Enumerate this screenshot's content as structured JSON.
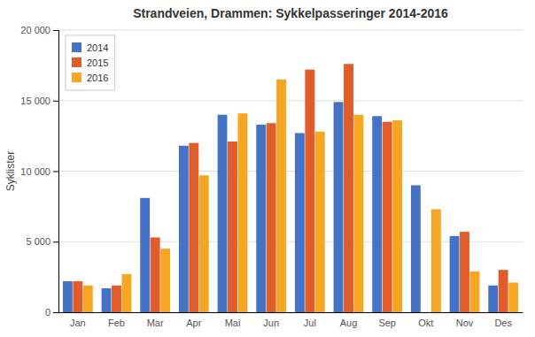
{
  "chart_data": {
    "type": "bar",
    "title": "Strandveien, Drammen: Sykkelpasseringer 2014-2016",
    "ylabel": "Syklister",
    "categories": [
      "Jan",
      "Feb",
      "Mar",
      "Apr",
      "Mai",
      "Jun",
      "Jul",
      "Aug",
      "Sep",
      "Okt",
      "Nov",
      "Des"
    ],
    "series": [
      {
        "name": "2014",
        "color": "#4472C4",
        "values": [
          2200,
          1700,
          8100,
          11800,
          14000,
          13300,
          12700,
          14900,
          13900,
          9000,
          5400,
          1900
        ]
      },
      {
        "name": "2015",
        "color": "#E05C2A",
        "values": [
          2200,
          1900,
          5300,
          12000,
          12100,
          13400,
          17200,
          17600,
          13500,
          0,
          5700,
          3000
        ]
      },
      {
        "name": "2016",
        "color": "#F5A623",
        "values": [
          1900,
          2700,
          4500,
          9700,
          14100,
          16500,
          12800,
          14000,
          13600,
          7300,
          2900,
          2100
        ]
      }
    ],
    "ylim": [
      0,
      20000
    ],
    "yticks": [
      0,
      {
        "value": 5000,
        "label": "5 000"
      },
      {
        "value": 10000,
        "label": "10 000"
      },
      {
        "value": 15000,
        "label": "15 000"
      },
      {
        "value": 20000,
        "label": "20 000"
      }
    ],
    "grid": true,
    "legend": "upper left"
  }
}
